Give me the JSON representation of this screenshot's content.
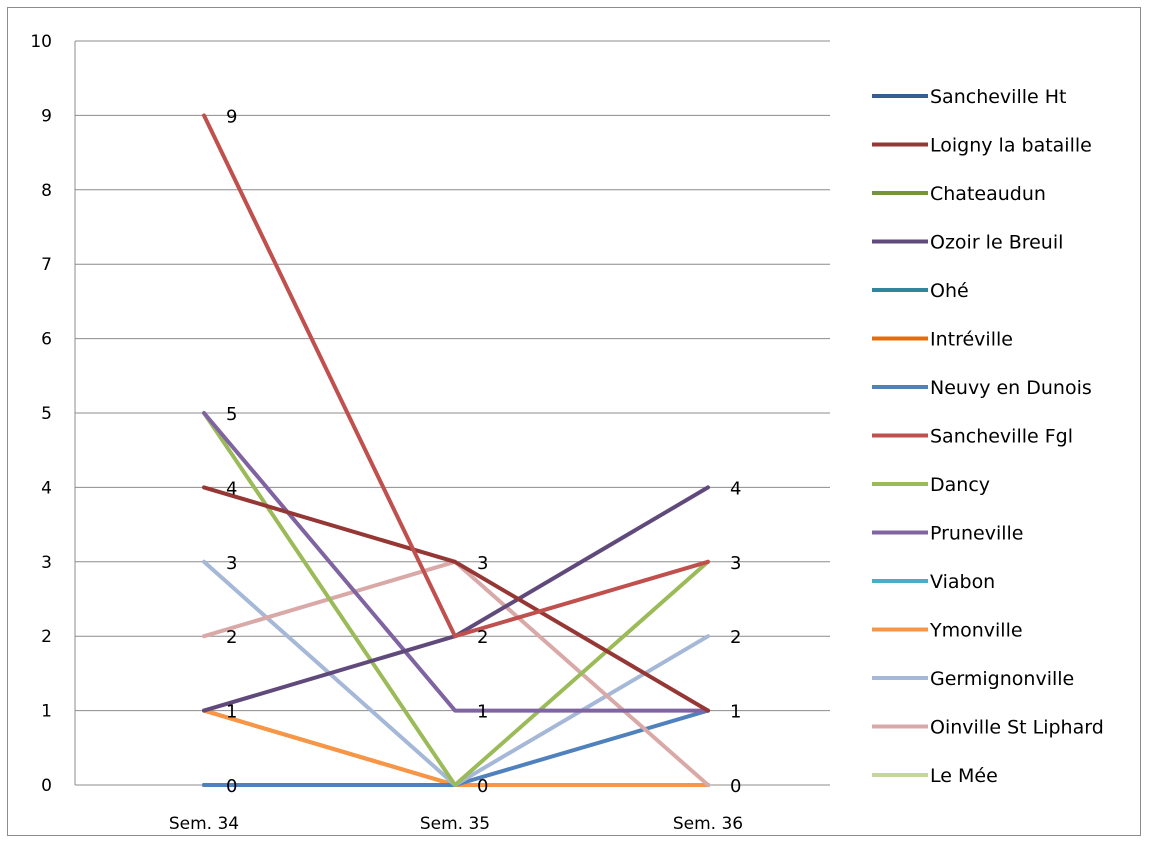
{
  "chart_data": {
    "type": "line",
    "title": "",
    "xlabel": "",
    "ylabel": "",
    "ylim": [
      0,
      10
    ],
    "grid": true,
    "legend_position": "right",
    "categories": [
      "Sem. 34",
      "Sem. 35",
      "Sem. 36"
    ],
    "y_ticks": [
      "0",
      "1",
      "2",
      "3",
      "4",
      "5",
      "6",
      "7",
      "8",
      "9",
      "10"
    ],
    "series": [
      {
        "name": "Sancheville Ht",
        "color": "#355e91",
        "values": [
          0,
          0,
          0
        ]
      },
      {
        "name": "Loigny la bataille",
        "color": "#953735",
        "values": [
          4,
          3,
          1
        ]
      },
      {
        "name": "Chateaudun",
        "color": "#77933c",
        "values": [
          0,
          0,
          0
        ]
      },
      {
        "name": "Ozoir le Breuil",
        "color": "#604a7b",
        "values": [
          1,
          2,
          4
        ]
      },
      {
        "name": "Ohé",
        "color": "#31859c",
        "values": [
          0,
          0,
          0
        ]
      },
      {
        "name": "Intréville",
        "color": "#e46c0a",
        "values": [
          1,
          0,
          0
        ]
      },
      {
        "name": "Neuvy en Dunois",
        "color": "#4f81bd",
        "values": [
          0,
          0,
          1
        ]
      },
      {
        "name": "Sancheville Fgl",
        "color": "#c0504d",
        "values": [
          9,
          2,
          3
        ]
      },
      {
        "name": "Dancy",
        "color": "#9bbb59",
        "values": [
          5,
          0,
          3
        ]
      },
      {
        "name": "Pruneville",
        "color": "#8064a2",
        "values": [
          5,
          1,
          1
        ]
      },
      {
        "name": "Viabon",
        "color": "#4bacc6",
        "values": [
          0,
          0,
          0
        ]
      },
      {
        "name": "Ymonville",
        "color": "#f79646",
        "values": [
          1,
          0,
          0
        ]
      },
      {
        "name": "Germignonville",
        "color": "#a5b8d7",
        "values": [
          3,
          0,
          2
        ]
      },
      {
        "name": "Oinville St Liphard",
        "color": "#d9a9a8",
        "values": [
          2,
          3,
          0
        ]
      },
      {
        "name": "Le Mée",
        "color": "#c3d69b",
        "values": [
          0,
          0,
          0
        ]
      }
    ],
    "data_labels": [
      {
        "category": 0,
        "text": "9",
        "value": 9
      },
      {
        "category": 0,
        "text": "5",
        "value": 5
      },
      {
        "category": 0,
        "text": "4",
        "value": 4
      },
      {
        "category": 0,
        "text": "3",
        "value": 3
      },
      {
        "category": 0,
        "text": "2",
        "value": 2
      },
      {
        "category": 0,
        "text": "1",
        "value": 1
      },
      {
        "category": 0,
        "text": "0",
        "value": 0
      },
      {
        "category": 1,
        "text": "3",
        "value": 3
      },
      {
        "category": 1,
        "text": "2",
        "value": 2
      },
      {
        "category": 1,
        "text": "1",
        "value": 1
      },
      {
        "category": 1,
        "text": "0",
        "value": 0
      },
      {
        "category": 2,
        "text": "4",
        "value": 4
      },
      {
        "category": 2,
        "text": "3",
        "value": 3
      },
      {
        "category": 2,
        "text": "2",
        "value": 2
      },
      {
        "category": 2,
        "text": "1",
        "value": 1
      },
      {
        "category": 2,
        "text": "0",
        "value": 0
      }
    ]
  }
}
